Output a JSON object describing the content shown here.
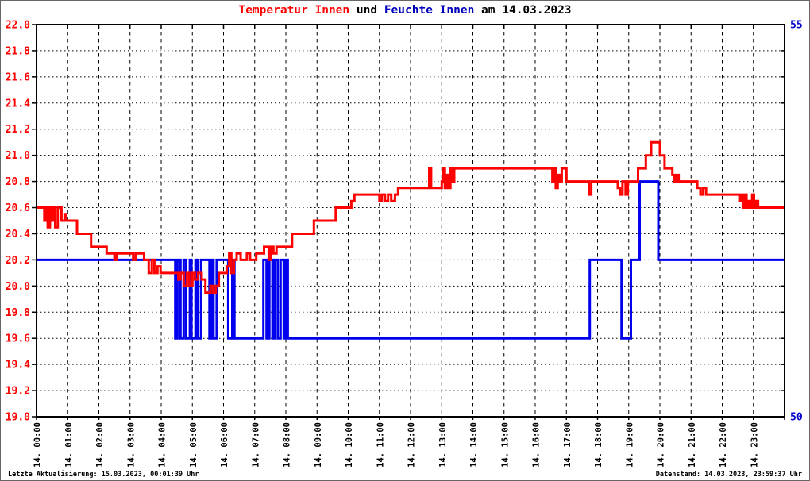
{
  "title": {
    "parts": [
      {
        "text": "Temperatur Innen",
        "color": "#ff0000"
      },
      {
        "text": " und ",
        "color": "#000000"
      },
      {
        "text": "Feuchte Innen",
        "color": "#0000bb"
      },
      {
        "text": " am 14.03.2023",
        "color": "#000000"
      }
    ]
  },
  "footer": {
    "left": "Letzte Aktualisierung: 15.03.2023, 00:01:39 Uhr",
    "right": "Datenstand: 14.03.2023, 23:59:37 Uhr"
  },
  "chart_data": {
    "type": "line",
    "title": "Temperatur Innen und Feuchte Innen am 14.03.2023",
    "grid": true,
    "x": {
      "unit": "hour",
      "range": [
        0,
        24
      ],
      "tick_labels": [
        "14. 00:00",
        "14. 01:00",
        "14. 02:00",
        "14. 03:00",
        "14. 04:00",
        "14. 05:00",
        "14. 06:00",
        "14. 07:00",
        "14. 08:00",
        "14. 09:00",
        "14. 10:00",
        "14. 11:00",
        "14. 12:00",
        "14. 13:00",
        "14. 14:00",
        "14. 15:00",
        "14. 16:00",
        "14. 17:00",
        "14. 18:00",
        "14. 19:00",
        "14. 20:00",
        "14. 21:00",
        "14. 22:00",
        "14. 23:00"
      ]
    },
    "y_left": {
      "min": 19.0,
      "max": 22.0,
      "tick_step": 0.2,
      "tick_labels": [
        "22.0",
        "21.8",
        "21.6",
        "21.4",
        "21.2",
        "21.0",
        "20.8",
        "20.6",
        "20.4",
        "20.2",
        "20.0",
        "19.8",
        "19.6",
        "19.4",
        "19.2",
        "19.0"
      ],
      "color": "#ff0000"
    },
    "y_right": {
      "min": 50,
      "max": 55,
      "tick_labels_shown": [
        "55",
        "50"
      ],
      "color": "#0000cc"
    },
    "series": [
      {
        "name": "Temperatur Innen",
        "axis": "left",
        "unit": "°C",
        "color": "#ff0000",
        "line_width": 3,
        "step": true,
        "points": [
          [
            0,
            20.6
          ],
          [
            0.25,
            20.5
          ],
          [
            0.3,
            20.6
          ],
          [
            0.36,
            20.45
          ],
          [
            0.43,
            20.6
          ],
          [
            0.48,
            20.5
          ],
          [
            0.55,
            20.6
          ],
          [
            0.6,
            20.45
          ],
          [
            0.68,
            20.6
          ],
          [
            0.8,
            20.5
          ],
          [
            0.9,
            20.55
          ],
          [
            0.95,
            20.5
          ],
          [
            1.3,
            20.4
          ],
          [
            1.75,
            20.3
          ],
          [
            2.25,
            20.25
          ],
          [
            2.5,
            20.2
          ],
          [
            2.57,
            20.25
          ],
          [
            3.1,
            20.2
          ],
          [
            3.18,
            20.25
          ],
          [
            3.45,
            20.2
          ],
          [
            3.6,
            20.1
          ],
          [
            3.7,
            20.2
          ],
          [
            3.78,
            20.1
          ],
          [
            3.88,
            20.15
          ],
          [
            3.98,
            20.1
          ],
          [
            4.55,
            20.05
          ],
          [
            4.62,
            20.1
          ],
          [
            4.72,
            20.0
          ],
          [
            4.82,
            20.1
          ],
          [
            4.9,
            20.0
          ],
          [
            5.0,
            20.1
          ],
          [
            5.08,
            20.05
          ],
          [
            5.18,
            20.1
          ],
          [
            5.3,
            20.05
          ],
          [
            5.42,
            19.95
          ],
          [
            5.58,
            20.0
          ],
          [
            5.66,
            19.95
          ],
          [
            5.75,
            20.0
          ],
          [
            5.85,
            20.1
          ],
          [
            6.1,
            20.15
          ],
          [
            6.18,
            20.25
          ],
          [
            6.25,
            20.1
          ],
          [
            6.33,
            20.2
          ],
          [
            6.42,
            20.25
          ],
          [
            6.55,
            20.2
          ],
          [
            6.75,
            20.25
          ],
          [
            6.85,
            20.2
          ],
          [
            7.05,
            20.25
          ],
          [
            7.3,
            20.3
          ],
          [
            7.45,
            20.2
          ],
          [
            7.52,
            20.3
          ],
          [
            7.6,
            20.25
          ],
          [
            7.7,
            20.3
          ],
          [
            8.2,
            20.4
          ],
          [
            8.9,
            20.5
          ],
          [
            9.6,
            20.6
          ],
          [
            10.1,
            20.65
          ],
          [
            10.2,
            20.7
          ],
          [
            11.0,
            20.65
          ],
          [
            11.08,
            20.7
          ],
          [
            11.18,
            20.65
          ],
          [
            11.28,
            20.7
          ],
          [
            11.38,
            20.65
          ],
          [
            11.5,
            20.7
          ],
          [
            11.6,
            20.75
          ],
          [
            12.6,
            20.9
          ],
          [
            12.66,
            20.75
          ],
          [
            13.0,
            20.8
          ],
          [
            13.05,
            20.9
          ],
          [
            13.1,
            20.75
          ],
          [
            13.16,
            20.85
          ],
          [
            13.22,
            20.75
          ],
          [
            13.28,
            20.9
          ],
          [
            13.34,
            20.8
          ],
          [
            13.4,
            20.9
          ],
          [
            16.55,
            20.8
          ],
          [
            16.6,
            20.9
          ],
          [
            16.66,
            20.75
          ],
          [
            16.72,
            20.85
          ],
          [
            16.78,
            20.8
          ],
          [
            16.85,
            20.9
          ],
          [
            17.0,
            20.8
          ],
          [
            17.72,
            20.7
          ],
          [
            17.8,
            20.8
          ],
          [
            18.65,
            20.75
          ],
          [
            18.72,
            20.7
          ],
          [
            18.8,
            20.8
          ],
          [
            18.9,
            20.7
          ],
          [
            18.97,
            20.8
          ],
          [
            19.3,
            20.9
          ],
          [
            19.55,
            21.0
          ],
          [
            19.72,
            21.1
          ],
          [
            20.0,
            21.0
          ],
          [
            20.15,
            20.9
          ],
          [
            20.4,
            20.85
          ],
          [
            20.47,
            20.8
          ],
          [
            20.53,
            20.85
          ],
          [
            20.6,
            20.8
          ],
          [
            21.2,
            20.75
          ],
          [
            21.3,
            20.7
          ],
          [
            21.38,
            20.75
          ],
          [
            21.48,
            20.7
          ],
          [
            22.55,
            20.65
          ],
          [
            22.6,
            20.7
          ],
          [
            22.66,
            20.6
          ],
          [
            22.72,
            20.7
          ],
          [
            22.78,
            20.6
          ],
          [
            22.84,
            20.65
          ],
          [
            22.9,
            20.6
          ],
          [
            22.96,
            20.7
          ],
          [
            23.02,
            20.6
          ],
          [
            23.08,
            20.65
          ],
          [
            23.15,
            20.6
          ],
          [
            24,
            20.6
          ]
        ]
      },
      {
        "name": "Feuchte Innen",
        "axis": "right",
        "unit": "%",
        "color": "#0000ee",
        "line_width": 3,
        "step": true,
        "points": [
          [
            0,
            52
          ],
          [
            4.45,
            51
          ],
          [
            4.52,
            52
          ],
          [
            4.62,
            51
          ],
          [
            4.72,
            52
          ],
          [
            4.8,
            51
          ],
          [
            4.92,
            52
          ],
          [
            4.97,
            51
          ],
          [
            5.1,
            52
          ],
          [
            5.16,
            51
          ],
          [
            5.28,
            52
          ],
          [
            5.55,
            51
          ],
          [
            5.62,
            52
          ],
          [
            5.68,
            51
          ],
          [
            5.78,
            52
          ],
          [
            6.15,
            51
          ],
          [
            6.28,
            52
          ],
          [
            6.35,
            51
          ],
          [
            7.28,
            52
          ],
          [
            7.38,
            51
          ],
          [
            7.47,
            52
          ],
          [
            7.57,
            51
          ],
          [
            7.64,
            52
          ],
          [
            7.74,
            51
          ],
          [
            7.83,
            52
          ],
          [
            7.93,
            51
          ],
          [
            8.0,
            52
          ],
          [
            8.06,
            51
          ],
          [
            17.75,
            52
          ],
          [
            18.77,
            51
          ],
          [
            19.07,
            52
          ],
          [
            19.35,
            53
          ],
          [
            19.95,
            52
          ],
          [
            24,
            52
          ]
        ]
      }
    ]
  }
}
